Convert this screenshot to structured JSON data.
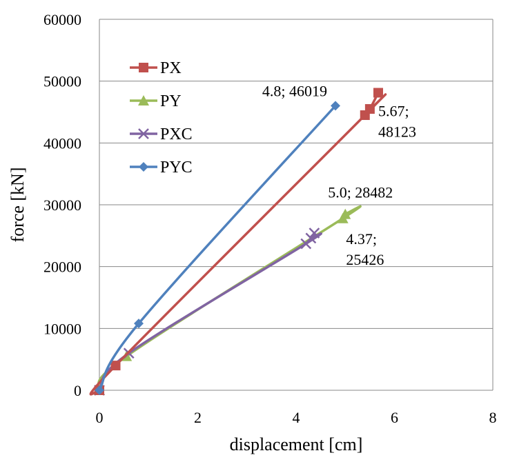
{
  "chart_data": {
    "type": "line",
    "xlabel": "displacement  [cm]",
    "ylabel": "force [kN]",
    "xlim": [
      0,
      8
    ],
    "ylim": [
      0,
      60000
    ],
    "xticks": [
      0,
      2,
      4,
      6,
      8
    ],
    "yticks": [
      0,
      10000,
      20000,
      30000,
      40000,
      50000,
      60000
    ],
    "grid": "horizontal",
    "legend_position": "top-left",
    "series": [
      {
        "name": "PX",
        "color": "#c0504d",
        "marker": "square",
        "points": [
          [
            0,
            0
          ],
          [
            0.33,
            4000
          ],
          [
            5.4,
            44500
          ],
          [
            5.5,
            45500
          ],
          [
            5.67,
            48123
          ]
        ]
      },
      {
        "name": "PY",
        "color": "#9bbb59",
        "marker": "triangle",
        "points": [
          [
            0,
            0
          ],
          [
            0.55,
            5500
          ],
          [
            4.95,
            27800
          ],
          [
            5.0,
            28482
          ]
        ]
      },
      {
        "name": "PXC",
        "color": "#8064a2",
        "marker": "x",
        "points": [
          [
            0,
            0
          ],
          [
            0.6,
            6000
          ],
          [
            4.2,
            23700
          ],
          [
            4.3,
            24600
          ],
          [
            4.37,
            25426
          ]
        ]
      },
      {
        "name": "PYC",
        "color": "#4f81bd",
        "marker": "diamond",
        "points": [
          [
            0,
            0
          ],
          [
            0.8,
            10800
          ],
          [
            4.8,
            46019
          ]
        ]
      }
    ],
    "annotations": [
      {
        "lines": [
          "4.8; 46019"
        ],
        "x": 4.8,
        "y": 46019,
        "anchor": "end",
        "dx": -12,
        "dy": -14
      },
      {
        "lines": [
          "5.67;",
          "48123"
        ],
        "x": 5.67,
        "y": 48123,
        "anchor": "start",
        "dx": 0,
        "dy": 34
      },
      {
        "lines": [
          "5.0; 28482"
        ],
        "x": 5.0,
        "y": 28482,
        "anchor": "middle",
        "dx": 22,
        "dy": -24
      },
      {
        "lines": [
          "4.37;",
          "25426"
        ],
        "x": 4.37,
        "y": 25426,
        "anchor": "start",
        "dx": 46,
        "dy": 16
      }
    ]
  }
}
